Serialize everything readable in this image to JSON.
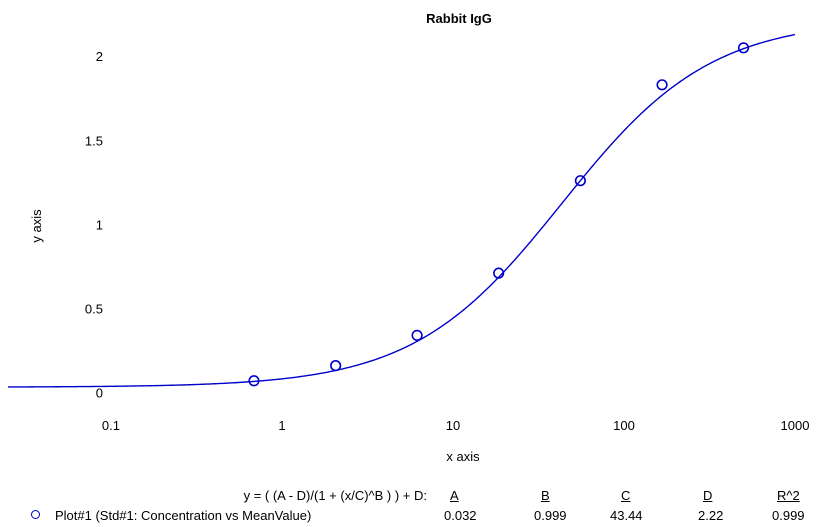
{
  "chart_data": {
    "type": "scatter",
    "title": "Rabbit IgG",
    "xlabel": "x axis",
    "ylabel": "y axis",
    "x_scale": "log",
    "xlim": [
      0.025,
      1000
    ],
    "ylim": [
      -0.08,
      2.15
    ],
    "x_ticks": [
      0.1,
      1,
      10,
      100,
      1000
    ],
    "x_tick_labels": [
      "0.1",
      "1",
      "10",
      "100",
      "1000"
    ],
    "y_ticks": [
      0,
      0.5,
      1,
      1.5,
      2
    ],
    "y_tick_labels": [
      "0",
      "0.5",
      "1",
      "1.5",
      "2"
    ],
    "grid": false,
    "series": [
      {
        "name": "Plot#1 (Std#1: Concentration vs MeanValue)",
        "color": "#0000cc",
        "marker": "open-circle",
        "points": [
          {
            "x": 0.686,
            "y": 0.07
          },
          {
            "x": 2.06,
            "y": 0.16
          },
          {
            "x": 6.17,
            "y": 0.34
          },
          {
            "x": 18.5,
            "y": 0.71
          },
          {
            "x": 55.6,
            "y": 1.26
          },
          {
            "x": 167,
            "y": 1.83
          },
          {
            "x": 500,
            "y": 2.05
          }
        ]
      }
    ],
    "fit": {
      "equation": "y = ( (A - D)/(1 + (x/C)^B ) ) + D:",
      "color": "#0000cc",
      "parameters": [
        {
          "name": "A",
          "value": "0.032"
        },
        {
          "name": "B",
          "value": "0.999"
        },
        {
          "name": "C",
          "value": "43.44"
        },
        {
          "name": "D",
          "value": "2.22"
        },
        {
          "name": "R^2",
          "value": "0.999"
        }
      ],
      "A": 0.032,
      "B": 0.999,
      "C": 43.44,
      "D": 2.22
    }
  }
}
